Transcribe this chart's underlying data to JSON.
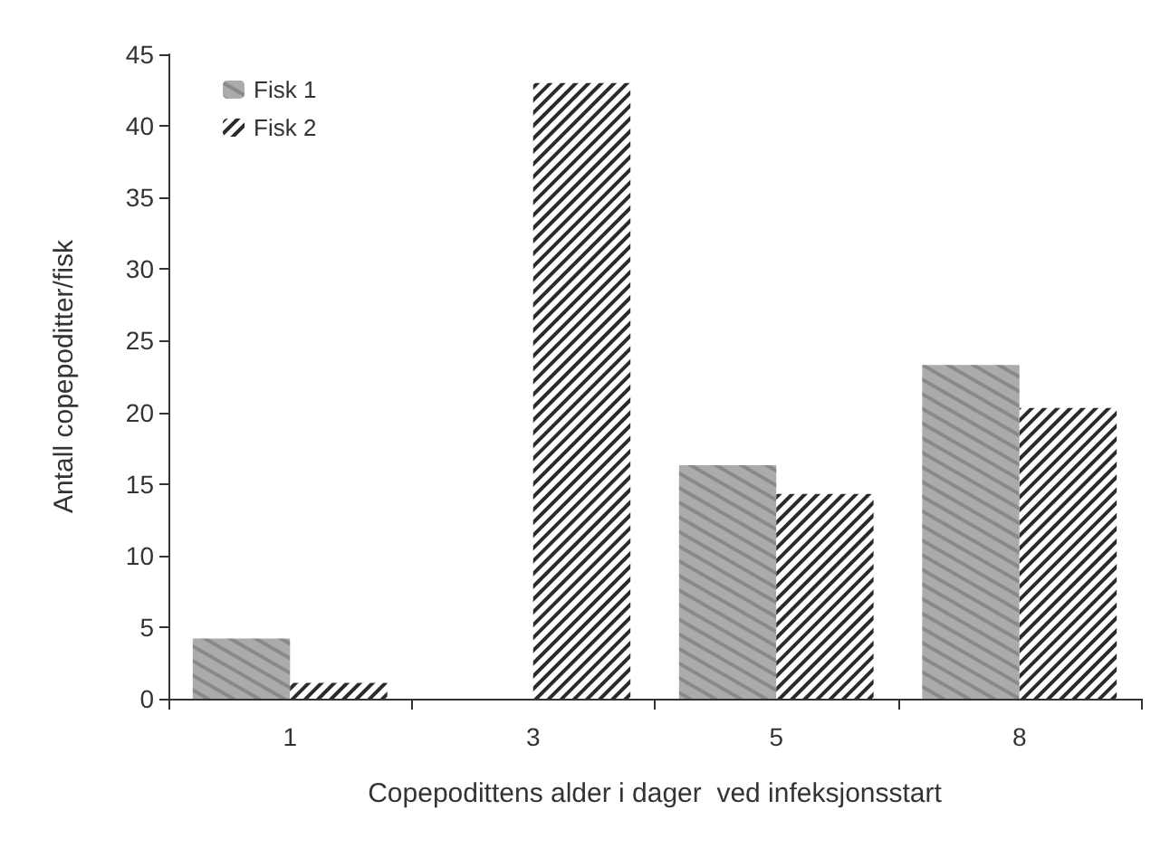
{
  "chart_data": {
    "type": "bar",
    "xlabel": "Copepodittens alder i dager  ved infeksjonsstart",
    "ylabel": "Antall copepoditter/fisk",
    "categories": [
      "1",
      "3",
      "5",
      "8"
    ],
    "series": [
      {
        "name": "Fisk 1",
        "color": "#a9acaa",
        "values": [
          4.2,
          0,
          16.3,
          23.3
        ]
      },
      {
        "name": "Fisk 2",
        "color": "#2a2a2a",
        "values": [
          1.1,
          43,
          14.3,
          20.3
        ]
      }
    ],
    "ylim": [
      0,
      45
    ],
    "yticks": [
      0,
      5,
      10,
      15,
      20,
      25,
      30,
      35,
      40,
      45
    ],
    "grid": false,
    "legend": "top left"
  }
}
